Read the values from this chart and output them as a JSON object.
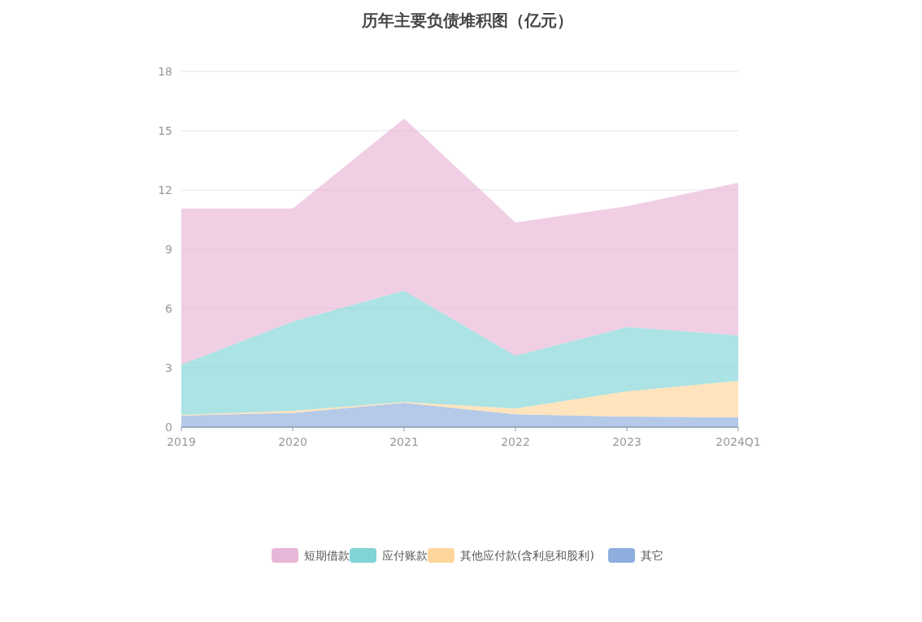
{
  "chart_data": {
    "type": "area",
    "title": "历年主要负债堆积图（亿元）",
    "categories": [
      "2019",
      "2020",
      "2021",
      "2022",
      "2023",
      "2024Q1"
    ],
    "stacked": true,
    "ylim": [
      0,
      18
    ],
    "yticks": [
      0,
      3,
      6,
      9,
      12,
      15,
      18
    ],
    "grid": "y",
    "legend": "bottom",
    "series": [
      {
        "name": "其它",
        "color": "#8eaedd",
        "values": [
          0.58,
          0.72,
          1.23,
          0.65,
          0.53,
          0.49
        ]
      },
      {
        "name": "其他应付款(含利息和股利)",
        "color": "#ffd69a",
        "values": [
          0.04,
          0.1,
          0.04,
          0.3,
          1.28,
          1.85
        ]
      },
      {
        "name": "应付账款",
        "color": "#80d4d6",
        "values": [
          2.54,
          4.52,
          5.63,
          2.67,
          3.25,
          2.3
        ]
      },
      {
        "name": "短期借款",
        "color": "#e8b6d6",
        "values": [
          7.9,
          5.72,
          8.72,
          6.74,
          6.12,
          7.73
        ]
      }
    ]
  }
}
